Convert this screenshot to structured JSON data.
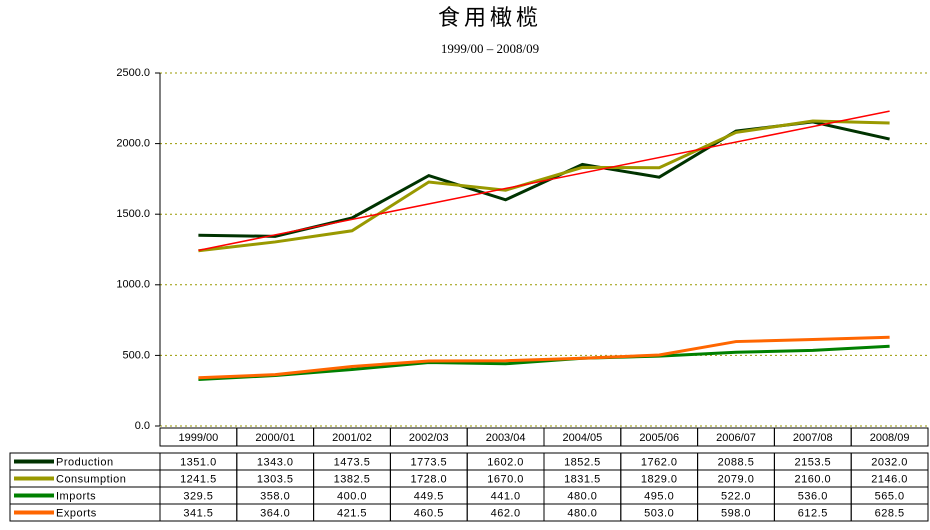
{
  "chart_data": {
    "type": "line",
    "title": "食用橄榄",
    "subtitle": "1999/00 – 2008/09",
    "categories": [
      "1999/00",
      "2000/01",
      "2001/02",
      "2002/03",
      "2003/04",
      "2004/05",
      "2005/06",
      "2006/07",
      "2007/08",
      "2008/09"
    ],
    "series": [
      {
        "name": "Production",
        "color": "#003300",
        "values": [
          1351,
          1343,
          1473.5,
          1773.5,
          1602,
          1852.5,
          1762,
          2088.5,
          2153.5,
          2032
        ],
        "value_labels": [
          "1351.0",
          "1343.0",
          "1473.5",
          "1773.5",
          "1602.0",
          "1852.5",
          "1762.0",
          "2088.5",
          "2153.5",
          "2032.0"
        ]
      },
      {
        "name": "Consumption",
        "color": "#999900",
        "values": [
          1241.5,
          1303.5,
          1382.5,
          1728,
          1670,
          1831.5,
          1829,
          2079,
          2160,
          2146
        ],
        "value_labels": [
          "1241.5",
          "1303.5",
          "1382.5",
          "1728.0",
          "1670.0",
          "1831.5",
          "1829.0",
          "2079.0",
          "2160.0",
          "2146.0"
        ]
      },
      {
        "name": "Imports",
        "color": "#008000",
        "values": [
          329.5,
          358,
          400,
          449.5,
          441,
          480,
          495,
          522,
          536,
          565
        ],
        "value_labels": [
          "329.5",
          "358.0",
          "400.0",
          "449.5",
          "441.0",
          "480.0",
          "495.0",
          "522.0",
          "536.0",
          "565.0"
        ]
      },
      {
        "name": "Exports",
        "color": "#ff6600",
        "values": [
          341.5,
          364,
          421.5,
          460.5,
          462,
          480,
          503,
          598,
          612.5,
          628.5
        ],
        "value_labels": [
          "341.5",
          "364.0",
          "421.5",
          "460.5",
          "462.0",
          "480.0",
          "503.0",
          "598.0",
          "612.5",
          "628.5"
        ]
      }
    ],
    "trendline": {
      "color": "#ff0000",
      "values": [
        1244,
        2230
      ]
    },
    "ylim": [
      0,
      2500
    ],
    "yticks": [
      {
        "value": 0,
        "label": "0.0"
      },
      {
        "value": 500,
        "label": "500.0"
      },
      {
        "value": 1000,
        "label": "1000.0"
      },
      {
        "value": 1500,
        "label": "1500.0"
      },
      {
        "value": 2000,
        "label": "2000.0"
      },
      {
        "value": 2500,
        "label": "2500.0"
      }
    ],
    "grid": true
  }
}
